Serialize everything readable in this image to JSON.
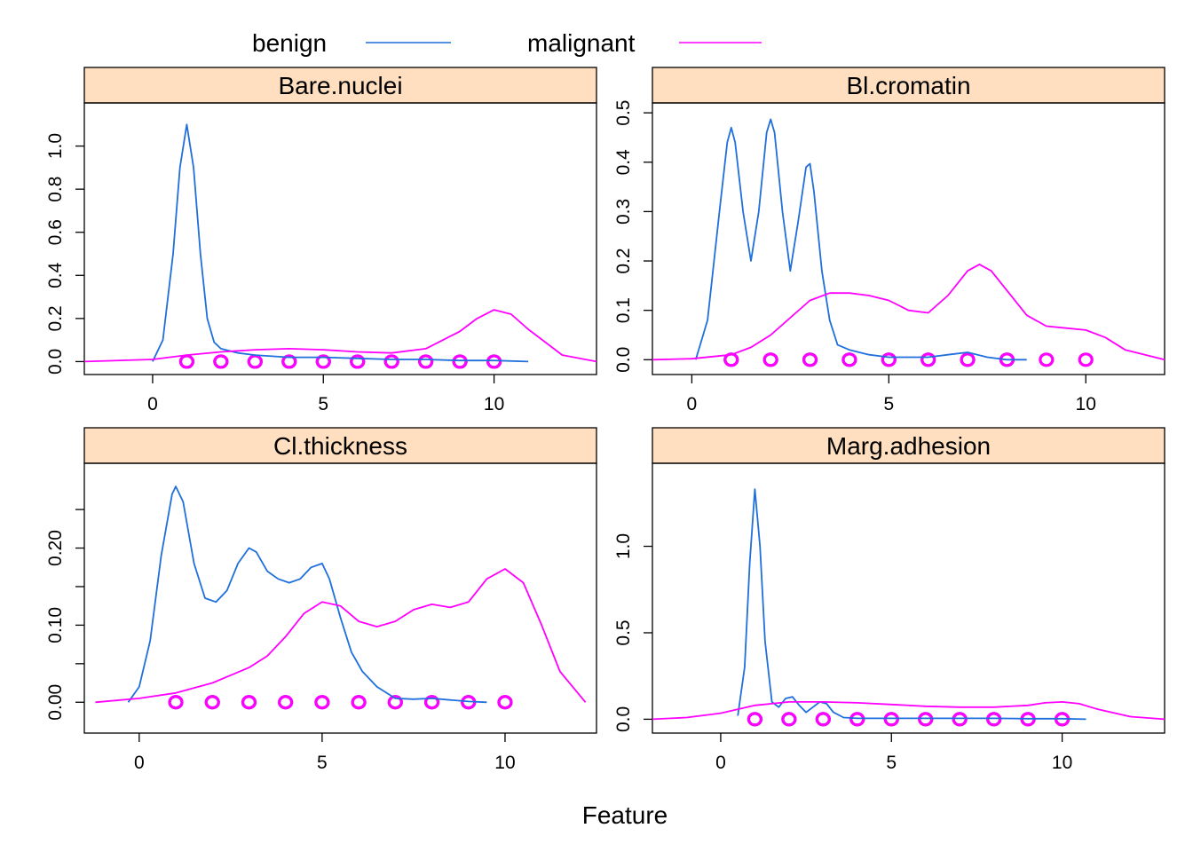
{
  "legend": {
    "placement": "top",
    "entries": [
      {
        "label": "benign",
        "color": "#1f6fdc"
      },
      {
        "label": "malignant",
        "color": "#ff00ff"
      }
    ]
  },
  "axis_label": "Feature",
  "colors": {
    "strip": "#ffdfbf",
    "benign": "#1f6fdc",
    "malignant": "#ff00ff"
  },
  "chart_data": [
    {
      "type": "line",
      "panel": "Bare.nuclei",
      "xlim": [
        -2,
        13
      ],
      "ylim": [
        -0.06,
        1.2
      ],
      "xticks": [
        0,
        5,
        10
      ],
      "yticks": [
        0.0,
        0.2,
        0.4,
        0.6,
        0.8,
        1.0
      ],
      "ytick_labels": [
        "0.0",
        "0.2",
        "0.4",
        "0.6",
        "0.8",
        "1.0"
      ],
      "series": [
        {
          "name": "benign",
          "x": [
            0.0,
            0.3,
            0.6,
            0.8,
            1.0,
            1.2,
            1.4,
            1.6,
            1.8,
            2.0,
            2.5,
            3.0,
            3.5,
            4.0,
            5.0,
            6.0,
            7.0,
            8.0,
            9.0,
            10.0,
            11.0
          ],
          "y": [
            0.0,
            0.1,
            0.5,
            0.9,
            1.1,
            0.9,
            0.5,
            0.2,
            0.09,
            0.06,
            0.04,
            0.03,
            0.025,
            0.02,
            0.02,
            0.015,
            0.01,
            0.01,
            0.005,
            0.005,
            0.0
          ]
        },
        {
          "name": "malignant",
          "x": [
            -2,
            0,
            1,
            2,
            3,
            4,
            5,
            6,
            7,
            8,
            9,
            9.5,
            10,
            10.5,
            11,
            12,
            13
          ],
          "y": [
            0.0,
            0.01,
            0.03,
            0.045,
            0.055,
            0.06,
            0.055,
            0.045,
            0.04,
            0.06,
            0.14,
            0.2,
            0.24,
            0.22,
            0.15,
            0.03,
            0.0
          ]
        }
      ],
      "rug": {
        "benign": [
          1,
          2,
          3,
          4,
          5,
          6,
          7,
          8,
          9,
          10
        ],
        "malignant": [
          1,
          2,
          3,
          4,
          5,
          6,
          7,
          8,
          9,
          10
        ]
      }
    },
    {
      "type": "line",
      "panel": "Bl.cromatin",
      "xlim": [
        -1,
        12
      ],
      "ylim": [
        -0.03,
        0.52
      ],
      "xticks": [
        0,
        5,
        10
      ],
      "yticks": [
        0.0,
        0.1,
        0.2,
        0.3,
        0.4,
        0.5
      ],
      "ytick_labels": [
        "0.0",
        "0.1",
        "0.2",
        "0.3",
        "0.4",
        "0.5"
      ],
      "series": [
        {
          "name": "benign",
          "x": [
            0.1,
            0.4,
            0.7,
            0.9,
            1.0,
            1.1,
            1.3,
            1.5,
            1.7,
            1.9,
            2.0,
            2.1,
            2.3,
            2.5,
            2.7,
            2.9,
            3.0,
            3.1,
            3.3,
            3.5,
            3.7,
            4.0,
            4.5,
            5.0,
            5.5,
            6.0,
            6.5,
            7.0,
            7.5,
            8.0,
            8.5
          ],
          "y": [
            0.0,
            0.08,
            0.3,
            0.44,
            0.47,
            0.44,
            0.3,
            0.2,
            0.3,
            0.46,
            0.487,
            0.46,
            0.3,
            0.18,
            0.28,
            0.39,
            0.397,
            0.34,
            0.18,
            0.08,
            0.03,
            0.02,
            0.01,
            0.005,
            0.005,
            0.005,
            0.01,
            0.015,
            0.005,
            0.0,
            0.0
          ]
        },
        {
          "name": "malignant",
          "x": [
            -1,
            0,
            1,
            1.5,
            2,
            2.5,
            3,
            3.5,
            4,
            4.5,
            5,
            5.5,
            6,
            6.5,
            7,
            7.3,
            7.6,
            8,
            8.5,
            9,
            9.5,
            10,
            10.5,
            11,
            12
          ],
          "y": [
            0.0,
            0.002,
            0.01,
            0.025,
            0.05,
            0.085,
            0.12,
            0.135,
            0.135,
            0.13,
            0.12,
            0.1,
            0.095,
            0.13,
            0.18,
            0.193,
            0.18,
            0.14,
            0.09,
            0.068,
            0.064,
            0.06,
            0.045,
            0.02,
            0.0
          ]
        }
      ],
      "rug": {
        "benign": [
          1,
          2,
          3,
          4,
          5,
          6,
          7,
          8
        ],
        "malignant": [
          1,
          2,
          3,
          4,
          5,
          6,
          7,
          8,
          9,
          10
        ]
      }
    },
    {
      "type": "line",
      "panel": "Cl.thickness",
      "xlim": [
        -1.5,
        12.5
      ],
      "ylim": [
        -0.04,
        0.31
      ],
      "xticks": [
        0,
        5,
        10
      ],
      "yticks": [
        0.0,
        0.1,
        0.2
      ],
      "ytick_labels": [
        "0.00",
        "0.10",
        "0.20"
      ],
      "extra_yticks": [
        0.05,
        0.15,
        0.25
      ],
      "series": [
        {
          "name": "benign",
          "x": [
            -0.3,
            0.0,
            0.3,
            0.6,
            0.9,
            1.0,
            1.2,
            1.5,
            1.8,
            2.1,
            2.4,
            2.7,
            3.0,
            3.2,
            3.5,
            3.8,
            4.1,
            4.4,
            4.7,
            5.0,
            5.2,
            5.5,
            5.8,
            6.1,
            6.5,
            7.0,
            7.5,
            8.0,
            8.5,
            9.0,
            9.5
          ],
          "y": [
            0.0,
            0.02,
            0.08,
            0.19,
            0.27,
            0.28,
            0.26,
            0.18,
            0.135,
            0.13,
            0.145,
            0.18,
            0.2,
            0.195,
            0.17,
            0.16,
            0.155,
            0.16,
            0.175,
            0.18,
            0.16,
            0.11,
            0.065,
            0.04,
            0.02,
            0.005,
            0.004,
            0.005,
            0.003,
            0.001,
            0.0
          ]
        },
        {
          "name": "malignant",
          "x": [
            -1.2,
            0,
            1,
            2,
            3,
            3.5,
            4,
            4.5,
            5,
            5.5,
            6,
            6.5,
            7,
            7.5,
            8,
            8.5,
            9,
            9.5,
            10,
            10.5,
            11,
            11.5,
            12.2
          ],
          "y": [
            0.0,
            0.005,
            0.012,
            0.025,
            0.045,
            0.06,
            0.085,
            0.115,
            0.13,
            0.125,
            0.105,
            0.098,
            0.105,
            0.12,
            0.127,
            0.123,
            0.13,
            0.16,
            0.173,
            0.155,
            0.1,
            0.04,
            0.0
          ]
        }
      ],
      "rug": {
        "benign": [
          1,
          2,
          3,
          4,
          5,
          6,
          7,
          8,
          9,
          10
        ],
        "malignant": [
          1,
          2,
          3,
          4,
          5,
          6,
          7,
          8,
          9,
          10
        ]
      }
    },
    {
      "type": "line",
      "panel": "Marg.adhesion",
      "xlim": [
        -2,
        13
      ],
      "ylim": [
        -0.08,
        1.48
      ],
      "xticks": [
        0,
        5,
        10
      ],
      "yticks": [
        0.0,
        0.5,
        1.0
      ],
      "ytick_labels": [
        "0.0",
        "0.5",
        "1.0"
      ],
      "series": [
        {
          "name": "benign",
          "x": [
            0.5,
            0.7,
            0.85,
            1.0,
            1.15,
            1.3,
            1.5,
            1.7,
            1.9,
            2.1,
            2.3,
            2.5,
            2.7,
            2.9,
            3.1,
            3.3,
            3.6,
            4.0,
            5.0,
            6.0,
            7.0,
            8.0,
            9.0,
            10.0,
            10.7
          ],
          "y": [
            0.02,
            0.3,
            0.9,
            1.33,
            1.0,
            0.45,
            0.1,
            0.07,
            0.12,
            0.13,
            0.08,
            0.04,
            0.07,
            0.1,
            0.09,
            0.04,
            0.01,
            0.005,
            0.005,
            0.005,
            0.005,
            0.005,
            0.003,
            0.003,
            0.0
          ]
        },
        {
          "name": "malignant",
          "x": [
            -2,
            -1,
            0,
            1,
            2,
            3,
            4,
            5,
            6,
            7,
            8,
            9,
            9.5,
            10,
            10.5,
            11,
            12,
            13
          ],
          "y": [
            0.0,
            0.01,
            0.035,
            0.08,
            0.1,
            0.1,
            0.095,
            0.085,
            0.075,
            0.07,
            0.07,
            0.08,
            0.095,
            0.1,
            0.09,
            0.06,
            0.015,
            0.0
          ]
        }
      ],
      "rug": {
        "benign": [
          1,
          2,
          3,
          4,
          5,
          6,
          7,
          8,
          9,
          10
        ],
        "malignant": [
          1,
          2,
          3,
          4,
          5,
          6,
          7,
          8,
          9,
          10
        ]
      }
    }
  ]
}
